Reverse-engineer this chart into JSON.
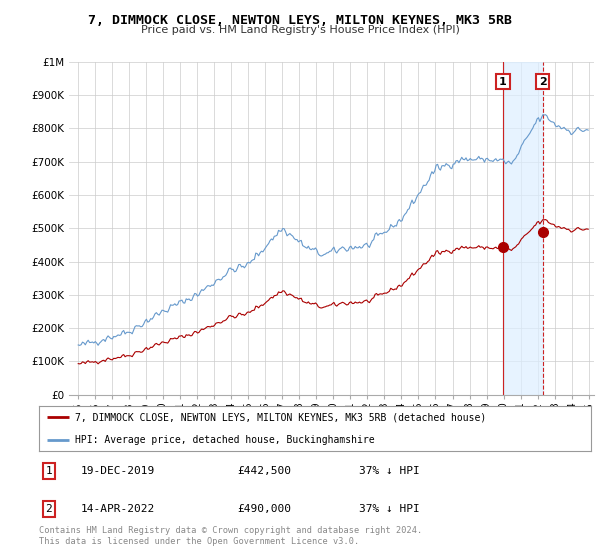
{
  "title": "7, DIMMOCK CLOSE, NEWTON LEYS, MILTON KEYNES, MK3 5RB",
  "subtitle": "Price paid vs. HM Land Registry's House Price Index (HPI)",
  "background_color": "#ffffff",
  "plot_bg_color": "#ffffff",
  "grid_color": "#cccccc",
  "hpi_color": "#6699cc",
  "hpi_fill_color": "#ddeeff",
  "price_color": "#aa0000",
  "annotation_box_color": "#cc2222",
  "ylim": [
    0,
    1000000
  ],
  "yticks": [
    0,
    100000,
    200000,
    300000,
    400000,
    500000,
    600000,
    700000,
    800000,
    900000,
    1000000
  ],
  "ytick_labels": [
    "£0",
    "£100K",
    "£200K",
    "£300K",
    "£400K",
    "£500K",
    "£600K",
    "£700K",
    "£800K",
    "£900K",
    "£1M"
  ],
  "sale1_x": 2019.96,
  "sale1_y": 442500,
  "sale2_x": 2022.28,
  "sale2_y": 490000,
  "legend_label1": "7, DIMMOCK CLOSE, NEWTON LEYS, MILTON KEYNES, MK3 5RB (detached house)",
  "legend_label2": "HPI: Average price, detached house, Buckinghamshire",
  "annot1_label": "1",
  "annot2_label": "2",
  "table_row1": [
    "1",
    "19-DEC-2019",
    "£442,500",
    "37% ↓ HPI"
  ],
  "table_row2": [
    "2",
    "14-APR-2022",
    "£490,000",
    "37% ↓ HPI"
  ],
  "footnote": "Contains HM Land Registry data © Crown copyright and database right 2024.\nThis data is licensed under the Open Government Licence v3.0.",
  "xtick_years": [
    1995,
    1996,
    1997,
    1998,
    1999,
    2000,
    2001,
    2002,
    2003,
    2004,
    2005,
    2006,
    2007,
    2008,
    2009,
    2010,
    2011,
    2012,
    2013,
    2014,
    2015,
    2016,
    2017,
    2018,
    2019,
    2020,
    2021,
    2022,
    2023,
    2024,
    2025
  ]
}
